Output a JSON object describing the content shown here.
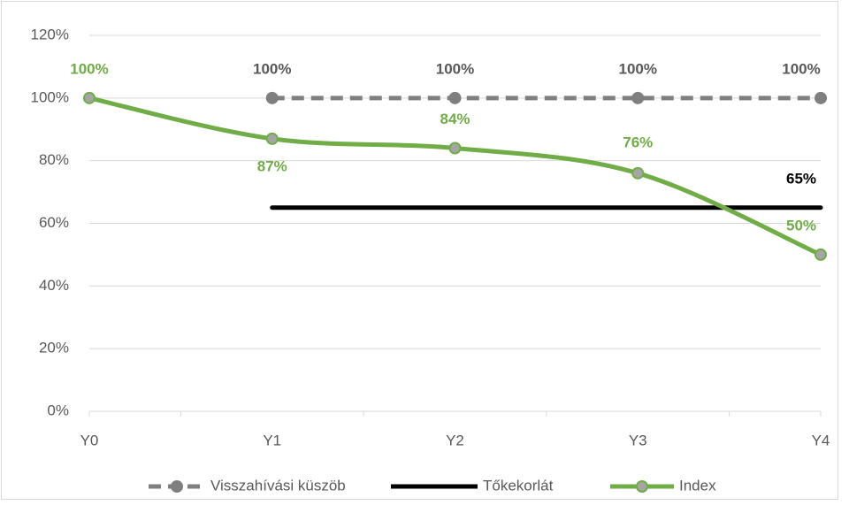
{
  "chart_data": {
    "type": "line",
    "categories": [
      "Y0",
      "Y1",
      "Y2",
      "Y3",
      "Y4"
    ],
    "series": [
      {
        "name": "Visszahívási küszöb",
        "color": "#7f7f7f",
        "dashed": true,
        "markers": true,
        "smooth": false,
        "values": [
          null,
          100,
          100,
          100,
          100
        ],
        "value_labels": [
          null,
          "100%",
          "100%",
          "100%",
          "100%"
        ]
      },
      {
        "name": "Tőkekorlát",
        "color": "#000000",
        "dashed": false,
        "markers": false,
        "smooth": false,
        "values": [
          null,
          65,
          65,
          65,
          65
        ],
        "value_labels": [
          null,
          null,
          null,
          null,
          "65%"
        ]
      },
      {
        "name": "Index",
        "color": "#70ad47",
        "dashed": false,
        "markers": true,
        "smooth": true,
        "values": [
          100,
          87,
          84,
          76,
          50
        ],
        "value_labels": [
          "100%",
          "87%",
          "84%",
          "76%",
          "50%"
        ]
      }
    ],
    "ylim": [
      0,
      120
    ],
    "yticks": [
      {
        "value": 0,
        "label": "0%"
      },
      {
        "value": 20,
        "label": "20%"
      },
      {
        "value": 40,
        "label": "40%"
      },
      {
        "value": 60,
        "label": "60%"
      },
      {
        "value": 80,
        "label": "80%"
      },
      {
        "value": 100,
        "label": "100%"
      },
      {
        "value": 120,
        "label": "120%"
      }
    ],
    "grid": true,
    "legend": "bottom"
  }
}
